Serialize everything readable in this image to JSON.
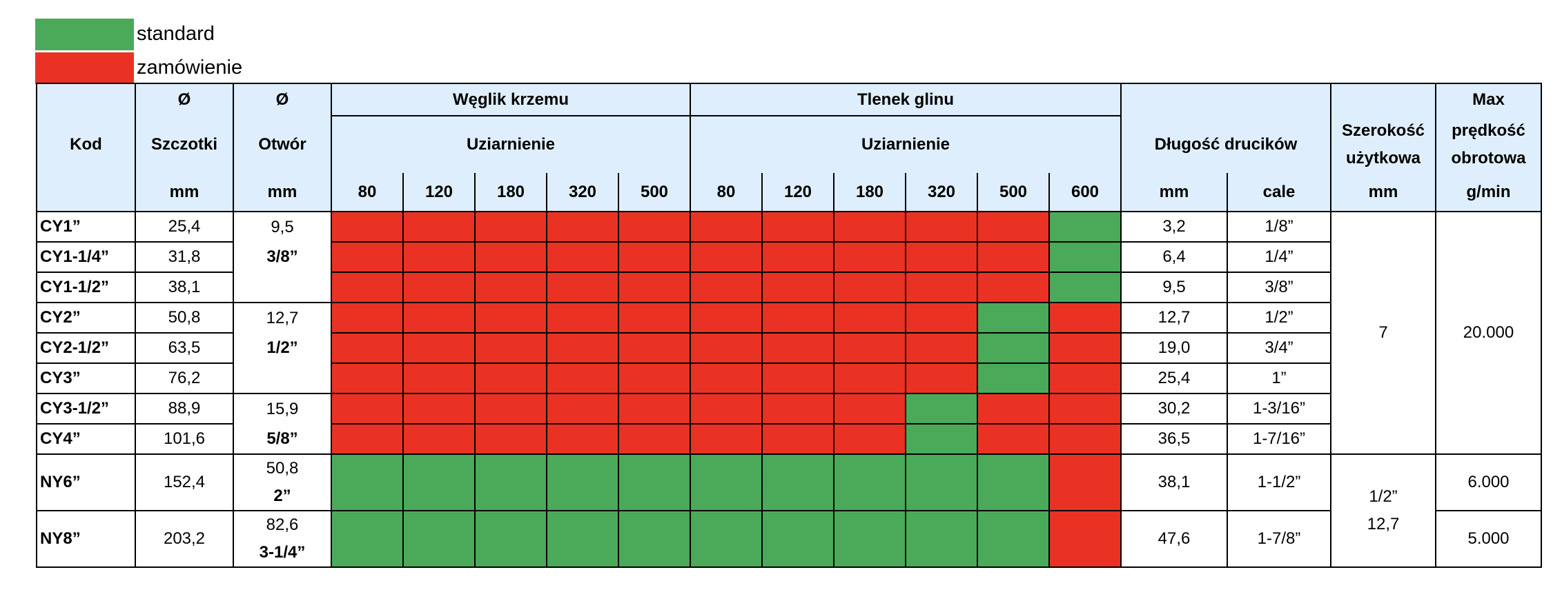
{
  "legend": {
    "standard_label": "standard",
    "order_label": "zamówienie",
    "standard_color": "#4aaa59",
    "order_color": "#e93223"
  },
  "header": {
    "kod": "Kod",
    "diameter_symbol": "Ø",
    "szczotki": "Szczotki",
    "otwor": "Otwór",
    "mm": "mm",
    "weglik": "Węglik krzemu",
    "tlenek": "Tlenek glinu",
    "uziarnienie": "Uziarnienie",
    "grits_weglik": [
      "80",
      "120",
      "180",
      "320",
      "500"
    ],
    "grits_tlenek": [
      "80",
      "120",
      "180",
      "320",
      "500",
      "600"
    ],
    "dlugosc": "Długość drucików",
    "cale": "cale",
    "szerokosc_1": "Szerokość",
    "szerokosc_2": "użytkowa",
    "max_1": "Max",
    "max_2": "prędkość",
    "max_3": "obrotowa",
    "gmin": "g/min"
  },
  "rows": [
    {
      "kod": "CY1”",
      "szczotki": "25,4",
      "dl_mm": "3,2",
      "dl_cale": "1/8”",
      "avail": "rrrrrrrrrrg"
    },
    {
      "kod": "CY1-1/4”",
      "szczotki": "31,8",
      "dl_mm": "6,4",
      "dl_cale": "1/4”",
      "avail": "rrrrrrrrrrg"
    },
    {
      "kod": "CY1-1/2”",
      "szczotki": "38,1",
      "dl_mm": "9,5",
      "dl_cale": "3/8”",
      "avail": "rrrrrrrrrrg"
    },
    {
      "kod": "CY2”",
      "szczotki": "50,8",
      "dl_mm": "12,7",
      "dl_cale": "1/2”",
      "avail": "rrrrrrrrrgr"
    },
    {
      "kod": "CY2-1/2”",
      "szczotki": "63,5",
      "dl_mm": "19,0",
      "dl_cale": "3/4”",
      "avail": "rrrrrrrrrgr"
    },
    {
      "kod": "CY3”",
      "szczotki": "76,2",
      "dl_mm": "25,4",
      "dl_cale": "1”",
      "avail": "rrrrrrrrrgr"
    },
    {
      "kod": "CY3-1/2”",
      "szczotki": "88,9",
      "dl_mm": "30,2",
      "dl_cale": "1-3/16”",
      "avail": "rrrrrrrrgrr"
    },
    {
      "kod": "CY4”",
      "szczotki": "101,6",
      "dl_mm": "36,5",
      "dl_cale": "1-7/16”",
      "avail": "rrrrrrrrgrr"
    },
    {
      "kod": "NY6”",
      "szczotki": "152,4",
      "dl_mm": "38,1",
      "dl_cale": "1-1/2”",
      "avail": "ggggggggggr"
    },
    {
      "kod": "NY8”",
      "szczotki": "203,2",
      "dl_mm": "47,6",
      "dl_cale": "1-7/8”",
      "avail": "ggggggggggr"
    }
  ],
  "otwor_groups": [
    {
      "mm": "9,5",
      "inch": "3/8”"
    },
    {
      "mm": "12,7",
      "inch": "1/2”"
    },
    {
      "mm": "15,9",
      "inch": "5/8”"
    },
    {
      "mm": "50,8",
      "inch": "2”"
    },
    {
      "mm": "82,6",
      "inch": "3-1/4”"
    }
  ],
  "szerokosc": {
    "cy": "7",
    "ny_inch": "1/2”",
    "ny_mm": "12,7"
  },
  "predkosc": {
    "cy": "20.000",
    "ny6": "6.000",
    "ny8": "5.000"
  }
}
